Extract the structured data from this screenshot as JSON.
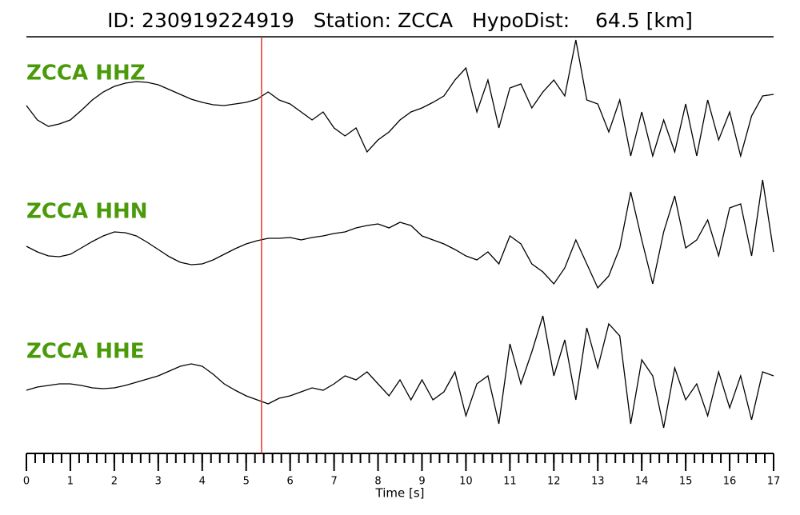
{
  "chart_data": {
    "type": "line",
    "title": "ID: 230919224919   Station: ZCCA   HypoDist:    64.5 [km]",
    "xlabel": "Time [s]",
    "xlim": [
      0,
      17
    ],
    "xticks": [
      0,
      1,
      2,
      3,
      4,
      5,
      6,
      7,
      8,
      9,
      10,
      11,
      12,
      13,
      14,
      15,
      16,
      17
    ],
    "xminor_step": 0.2,
    "pick_time": 5.35,
    "pick_color": "#e8312b",
    "label_color": "#4a9a0a",
    "x": [
      0,
      0.25,
      0.5,
      0.75,
      1,
      1.25,
      1.5,
      1.75,
      2,
      2.25,
      2.5,
      2.75,
      3,
      3.25,
      3.5,
      3.75,
      4,
      4.25,
      4.5,
      4.75,
      5,
      5.25,
      5.5,
      5.75,
      6,
      6.25,
      6.5,
      6.75,
      7,
      7.25,
      7.5,
      7.75,
      8,
      8.25,
      8.5,
      8.75,
      9,
      9.25,
      9.5,
      9.75,
      10,
      10.25,
      10.5,
      10.75,
      11,
      11.25,
      11.5,
      11.75,
      12,
      12.25,
      12.5,
      12.75,
      13,
      13.25,
      13.5,
      13.75,
      14,
      14.25,
      14.5,
      14.75,
      15,
      15.25,
      15.5,
      15.75,
      16,
      16.25,
      16.5,
      16.75,
      17
    ],
    "series": [
      {
        "name": "ZCCA HHZ",
        "color": "#000000",
        "values": [
          -2,
          -20,
          -28,
          -25,
          -20,
          -8,
          5,
          15,
          22,
          26,
          28,
          27,
          24,
          18,
          12,
          6,
          2,
          -1,
          -2,
          0,
          2,
          6,
          15,
          5,
          0,
          -10,
          -20,
          -10,
          -30,
          -40,
          -30,
          -60,
          -45,
          -35,
          -20,
          -10,
          -5,
          2,
          10,
          30,
          45,
          -10,
          30,
          -30,
          20,
          25,
          -5,
          15,
          30,
          10,
          80,
          5,
          0,
          -35,
          5,
          -65,
          -10,
          -65,
          -20,
          -60,
          0,
          -65,
          5,
          -45,
          -10,
          -65,
          -15,
          10,
          12
        ]
      },
      {
        "name": "ZCCA HHN",
        "color": "#000000",
        "values": [
          -8,
          -15,
          -20,
          -21,
          -18,
          -10,
          -2,
          5,
          10,
          9,
          5,
          -3,
          -12,
          -21,
          -28,
          -31,
          -30,
          -25,
          -18,
          -11,
          -5,
          -1,
          2,
          2,
          3,
          0,
          3,
          5,
          8,
          10,
          15,
          18,
          20,
          15,
          22,
          18,
          5,
          0,
          -5,
          -12,
          -20,
          -25,
          -15,
          -30,
          5,
          -5,
          -30,
          -40,
          -55,
          -35,
          0,
          -30,
          -60,
          -45,
          -10,
          60,
          0,
          -55,
          10,
          55,
          -10,
          0,
          25,
          -20,
          40,
          45,
          -20,
          75,
          -15
        ]
      },
      {
        "name": "ZCCA HHE",
        "color": "#000000",
        "values": [
          -8,
          -4,
          -2,
          0,
          0,
          -2,
          -5,
          -6,
          -5,
          -2,
          2,
          6,
          10,
          16,
          22,
          25,
          22,
          12,
          0,
          -8,
          -15,
          -20,
          -25,
          -18,
          -15,
          -10,
          -5,
          -8,
          0,
          10,
          5,
          15,
          0,
          -15,
          5,
          -20,
          5,
          -20,
          -10,
          15,
          -40,
          0,
          10,
          -50,
          50,
          0,
          40,
          85,
          10,
          55,
          -20,
          70,
          20,
          75,
          60,
          -50,
          30,
          10,
          -55,
          20,
          -20,
          0,
          -40,
          15,
          -30,
          10,
          -45,
          15,
          10
        ]
      }
    ]
  }
}
